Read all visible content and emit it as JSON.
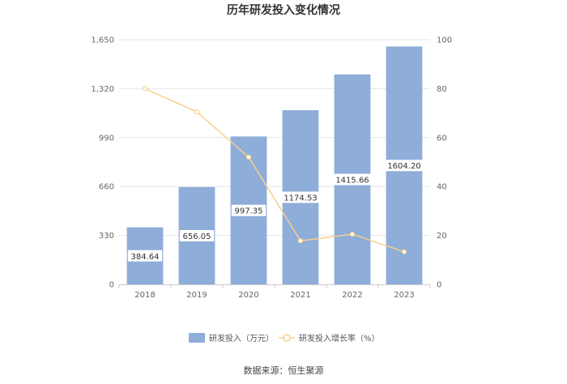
{
  "chart_data": {
    "type": "bar",
    "title": "历年研发投入变化情况",
    "categories": [
      "2018",
      "2019",
      "2020",
      "2021",
      "2022",
      "2023"
    ],
    "series": [
      {
        "name": "研发投入（万元）",
        "type": "bar",
        "axis": "left",
        "color": "#8eadd9",
        "values": [
          384.64,
          656.05,
          997.35,
          1174.53,
          1415.66,
          1604.2
        ],
        "labels": [
          "384.64",
          "656.05",
          "997.35",
          "1174.53",
          "1415.66",
          "1604.20"
        ]
      },
      {
        "name": "研发投入增长率（%）",
        "type": "line",
        "axis": "right",
        "color": "#f7d08a",
        "values": [
          80.0,
          70.5,
          52.0,
          17.8,
          20.5,
          13.3
        ]
      }
    ],
    "y_left": {
      "ylim": [
        0,
        1650
      ],
      "ticks": [
        "0",
        "330",
        "660",
        "990",
        "1,320",
        "1,650"
      ]
    },
    "y_right": {
      "ylim": [
        0,
        100
      ],
      "ticks": [
        "0",
        "20",
        "40",
        "60",
        "80",
        "100"
      ]
    },
    "grid": true,
    "legend_position": "bottom-center",
    "source": "数据来源：恒生聚源"
  }
}
